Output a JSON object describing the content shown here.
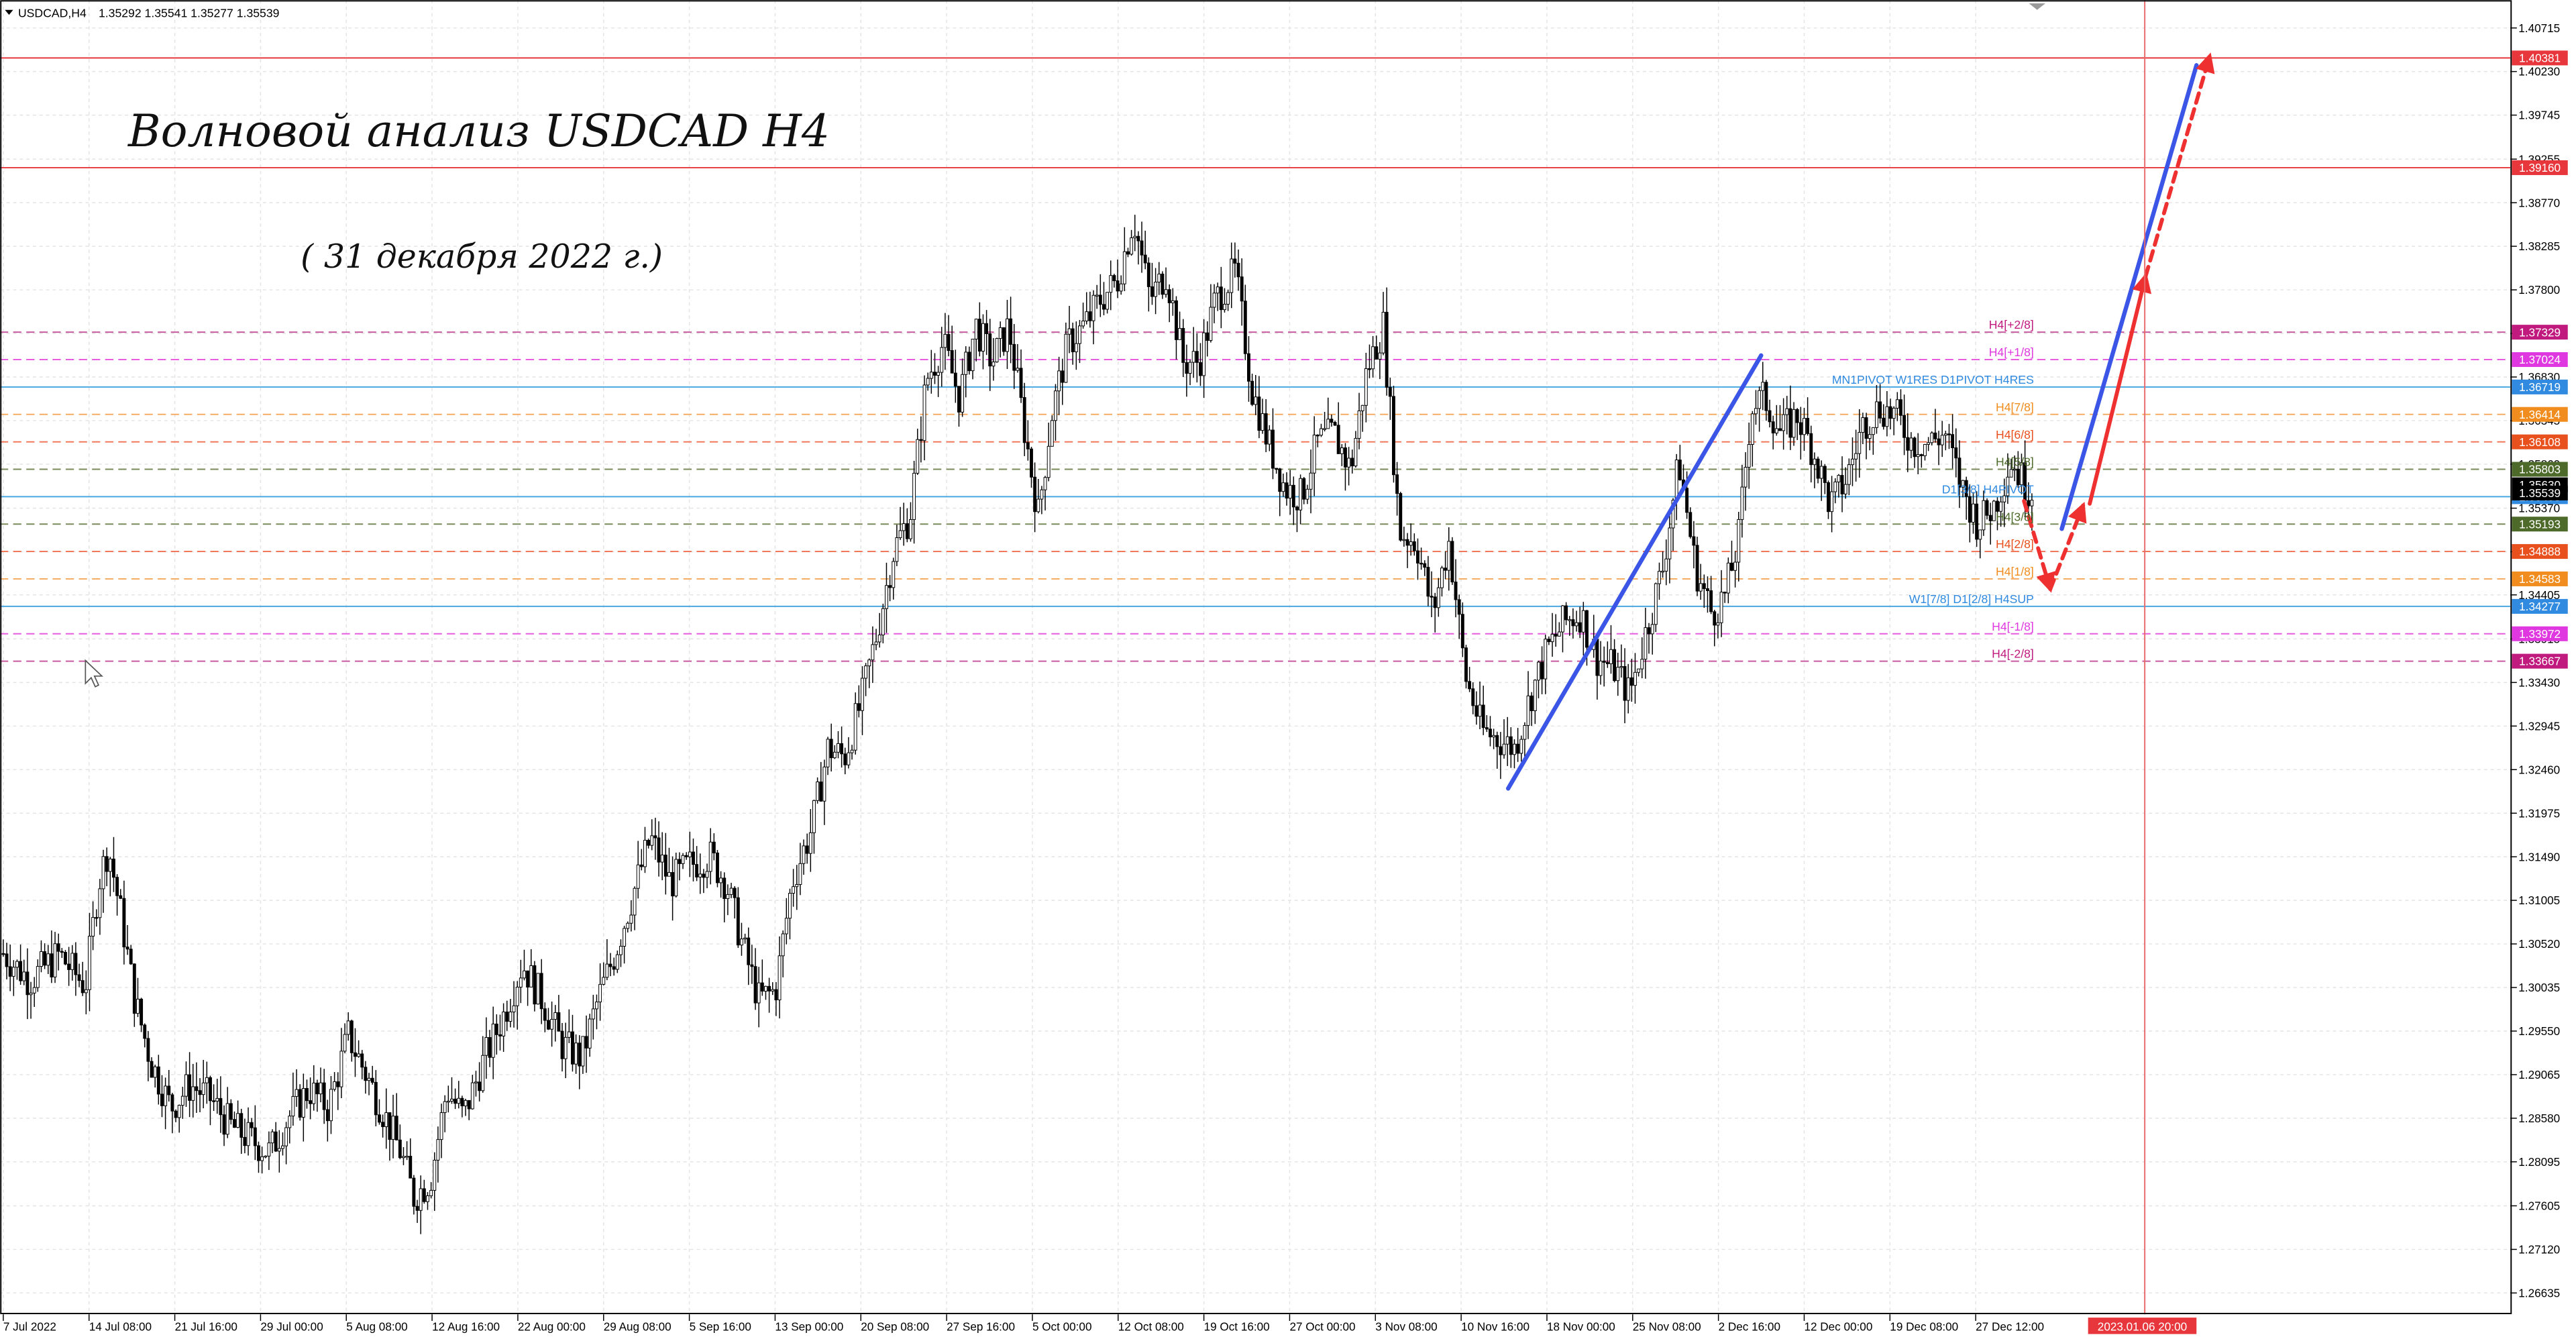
{
  "symbol_bar": {
    "symbol": "USDCAD,H4",
    "ohlc": "1.35292 1.35541 1.35277 1.35539"
  },
  "headline": {
    "title": "Волновой анализ USDCAD H4",
    "subtitle": "( 31 декабря 2022 г.)"
  },
  "colors": {
    "background": "#ffffff",
    "grid": "#e4e4e4",
    "candle": "#000000",
    "resistance_line": "#e8373c",
    "pivot_line": "#4aa8e0",
    "wave_blue": "#3b55e6",
    "wave_red": "#ee3030",
    "current_price_label": "#000000",
    "axis_text": "#000000"
  },
  "chart_data": {
    "type": "candlestick",
    "title": "",
    "xlabel": "",
    "ylabel": "",
    "ylim": [
      1.2634,
      1.4097
    ],
    "price_ticks": [
      "1.40715",
      "1.40230",
      "1.39745",
      "1.39255",
      "1.38770",
      "1.38285",
      "1.37800",
      "1.37315",
      "1.36830",
      "1.36345",
      "1.35860",
      "1.35370",
      "1.34885",
      "1.34405",
      "1.33915",
      "1.33430",
      "1.32945",
      "1.32460",
      "1.31975",
      "1.31490",
      "1.31005",
      "1.30520",
      "1.30035",
      "1.29550",
      "1.29065",
      "1.28580",
      "1.28095",
      "1.27605",
      "1.27120",
      "1.26635"
    ],
    "time_labels": [
      "7 Jul 2022",
      "14 Jul 08:00",
      "21 Jul 16:00",
      "29 Jul 00:00",
      "5 Aug 08:00",
      "12 Aug 16:00",
      "22 Aug 00:00",
      "29 Aug 08:00",
      "5 Sep 16:00",
      "13 Sep 00:00",
      "20 Sep 08:00",
      "27 Sep 16:00",
      "5 Oct 00:00",
      "12 Oct 08:00",
      "19 Oct 16:00",
      "27 Oct 00:00",
      "3 Nov 08:00",
      "10 Nov 16:00",
      "18 Nov 00:00",
      "25 Nov 08:00",
      "2 Dec 16:00",
      "12 Dec 00:00",
      "19 Dec 08:00",
      "27 Dec 12:00"
    ],
    "time_marker_label": "2023.01.06 20:00",
    "price_path": [
      [
        0,
        1.3045
      ],
      [
        18,
        1.3012
      ],
      [
        36,
        1.304
      ],
      [
        52,
        1.3005
      ],
      [
        60,
        1.312
      ],
      [
        66,
        1.316
      ],
      [
        74,
        1.308
      ],
      [
        82,
        1.299
      ],
      [
        92,
        1.292
      ],
      [
        104,
        1.287
      ],
      [
        116,
        1.2895
      ],
      [
        128,
        1.288
      ],
      [
        140,
        1.285
      ],
      [
        152,
        1.2835
      ],
      [
        164,
        1.282
      ],
      [
        176,
        1.286
      ],
      [
        188,
        1.289
      ],
      [
        200,
        1.287
      ],
      [
        212,
        1.295
      ],
      [
        222,
        1.291
      ],
      [
        232,
        1.287
      ],
      [
        244,
        1.282
      ],
      [
        252,
        1.277
      ],
      [
        262,
        1.279
      ],
      [
        272,
        1.289
      ],
      [
        282,
        1.286
      ],
      [
        294,
        1.292
      ],
      [
        306,
        1.297
      ],
      [
        318,
        1.303
      ],
      [
        330,
        1.299
      ],
      [
        342,
        1.294
      ],
      [
        354,
        1.2925
      ],
      [
        364,
        1.299
      ],
      [
        374,
        1.304
      ],
      [
        384,
        1.31
      ],
      [
        396,
        1.317
      ],
      [
        408,
        1.312
      ],
      [
        420,
        1.314
      ],
      [
        432,
        1.315
      ],
      [
        442,
        1.312
      ],
      [
        452,
        1.305
      ],
      [
        462,
        1.299
      ],
      [
        472,
        1.3
      ],
      [
        482,
        1.312
      ],
      [
        494,
        1.318
      ],
      [
        504,
        1.327
      ],
      [
        514,
        1.326
      ],
      [
        524,
        1.332
      ],
      [
        534,
        1.34
      ],
      [
        544,
        1.349
      ],
      [
        554,
        1.353
      ],
      [
        564,
        1.368
      ],
      [
        574,
        1.372
      ],
      [
        584,
        1.366
      ],
      [
        594,
        1.374
      ],
      [
        604,
        1.37
      ],
      [
        614,
        1.374
      ],
      [
        624,
        1.362
      ],
      [
        632,
        1.353
      ],
      [
        640,
        1.364
      ],
      [
        650,
        1.372
      ],
      [
        660,
        1.374
      ],
      [
        670,
        1.377
      ],
      [
        680,
        1.379
      ],
      [
        690,
        1.386
      ],
      [
        700,
        1.377
      ],
      [
        710,
        1.38
      ],
      [
        720,
        1.37
      ],
      [
        730,
        1.37
      ],
      [
        740,
        1.377
      ],
      [
        752,
        1.38
      ],
      [
        762,
        1.367
      ],
      [
        772,
        1.361
      ],
      [
        782,
        1.356
      ],
      [
        792,
        1.355
      ],
      [
        802,
        1.361
      ],
      [
        812,
        1.362
      ],
      [
        822,
        1.358
      ],
      [
        832,
        1.369
      ],
      [
        842,
        1.374
      ],
      [
        852,
        1.351
      ],
      [
        862,
        1.35
      ],
      [
        872,
        1.342
      ],
      [
        882,
        1.35
      ],
      [
        892,
        1.335
      ],
      [
        902,
        1.329
      ],
      [
        912,
        1.328
      ],
      [
        922,
        1.327
      ],
      [
        932,
        1.333
      ],
      [
        942,
        1.338
      ],
      [
        952,
        1.341
      ],
      [
        962,
        1.342
      ],
      [
        972,
        1.337
      ],
      [
        982,
        1.336
      ],
      [
        992,
        1.333
      ],
      [
        1002,
        1.34
      ],
      [
        1012,
        1.347
      ],
      [
        1022,
        1.359
      ],
      [
        1032,
        1.347
      ],
      [
        1042,
        1.342
      ],
      [
        1050,
        1.344
      ],
      [
        1058,
        1.35
      ],
      [
        1066,
        1.365
      ],
      [
        1074,
        1.366
      ],
      [
        1084,
        1.362
      ],
      [
        1094,
        1.364
      ],
      [
        1104,
        1.36
      ],
      [
        1114,
        1.354
      ],
      [
        1124,
        1.357
      ],
      [
        1134,
        1.363
      ],
      [
        1144,
        1.365
      ],
      [
        1154,
        1.364
      ],
      [
        1164,
        1.361
      ],
      [
        1174,
        1.361
      ],
      [
        1184,
        1.362
      ],
      [
        1194,
        1.356
      ],
      [
        1204,
        1.352
      ],
      [
        1214,
        1.354
      ],
      [
        1224,
        1.359
      ],
      [
        1234,
        1.356
      ],
      [
        1238,
        1.3554
      ]
    ],
    "horizontal_levels": [
      {
        "price": 1.40381,
        "label": "1.40381",
        "style": "solid",
        "color": "#e8373c",
        "label_bg": "#e8373c"
      },
      {
        "price": 1.3916,
        "label": "1.39160",
        "style": "solid",
        "color": "#e8373c",
        "label_bg": "#e8373c"
      },
      {
        "price": 1.37329,
        "label": "1.37329",
        "style": "dash",
        "color": "#c85aa0",
        "label_bg": "#c01a7e",
        "text": "H4[+2/8]",
        "text_color": "#c01a7e"
      },
      {
        "price": 1.37024,
        "label": "1.37024",
        "style": "dash",
        "color": "#e85ce0",
        "label_bg": "#e038e0",
        "text": "H4[+1/8]",
        "text_color": "#e038e0"
      },
      {
        "price": 1.36719,
        "label": "1.36719",
        "style": "solid",
        "color": "#4aa8e0",
        "label_bg": "#2f8ae0",
        "text": "MN1PIVOT W1RES D1PIVOT H4RES",
        "text_color": "#2f8ae0"
      },
      {
        "price": 1.36414,
        "label": "1.36414",
        "style": "dash",
        "color": "#f3a85a",
        "label_bg": "#f08d1e",
        "text": "H4[7/8]",
        "text_color": "#f08d1e"
      },
      {
        "price": 1.36108,
        "label": "1.36108",
        "style": "dash",
        "color": "#f07050",
        "label_bg": "#e8501e",
        "text": "H4[6/8]",
        "text_color": "#e8501e"
      },
      {
        "price": 1.35803,
        "label": "1.35803",
        "style": "dash",
        "color": "#7a8a5a",
        "label_bg": "#4d6a2a",
        "text": "H4[5/8]",
        "text_color": "#4d6a2a"
      },
      {
        "price": 1.35498,
        "label": "1.35498",
        "style": "solid",
        "color": "#4aa8e0",
        "label_bg": "#2f8ae0",
        "text": "D1[3/8] H4PIVOT",
        "text_color": "#2f8ae0"
      },
      {
        "price": 1.35193,
        "label": "1.35193",
        "style": "dash",
        "color": "#7a8a5a",
        "label_bg": "#4d6a2a",
        "text": "H4[3/8]",
        "text_color": "#4d6a2a"
      },
      {
        "price": 1.34888,
        "label": "1.34888",
        "style": "dash",
        "color": "#f07050",
        "label_bg": "#e8501e",
        "text": "H4[2/8]",
        "text_color": "#e8501e"
      },
      {
        "price": 1.34583,
        "label": "1.34583",
        "style": "dash",
        "color": "#f3a85a",
        "label_bg": "#f08d1e",
        "text": "H4[1/8]",
        "text_color": "#f08d1e"
      },
      {
        "price": 1.34277,
        "label": "1.34277",
        "style": "solid",
        "color": "#4aa8e0",
        "label_bg": "#2f8ae0",
        "text": "W1[7/8] D1[2/8] H4SUP",
        "text_color": "#2f8ae0"
      },
      {
        "price": 1.33972,
        "label": "1.33972",
        "style": "dash",
        "color": "#e85ce0",
        "label_bg": "#e038e0",
        "text": "H4[-1/8]",
        "text_color": "#e038e0"
      },
      {
        "price": 1.33667,
        "label": "1.33667",
        "style": "dash",
        "color": "#c85aa0",
        "label_bg": "#c01a7e",
        "text": "H4[-2/8]",
        "text_color": "#c01a7e"
      }
    ],
    "current_price": {
      "price": 1.35539,
      "label": "1.35539"
    },
    "bid_tag": {
      "price": 1.3563,
      "label": "1.35630"
    },
    "wave_lines": [
      {
        "color": "blue",
        "style": "solid",
        "from": [
          918,
          1.3225
        ],
        "to": [
          1072,
          1.3707
        ]
      },
      {
        "color": "blue",
        "style": "solid",
        "from": [
          1255,
          1.3514
        ],
        "to": [
          1337,
          1.403
        ]
      },
      {
        "color": "red",
        "style": "dashed",
        "from": [
          1232,
          1.3545
        ],
        "to": [
          1248,
          1.3447
        ]
      },
      {
        "color": "red",
        "style": "dashed",
        "from": [
          1248,
          1.3447
        ],
        "to": [
          1268,
          1.354
        ]
      },
      {
        "color": "red",
        "style": "solid",
        "from": [
          1272,
          1.3542
        ],
        "to": [
          1306,
          1.3795
        ]
      },
      {
        "color": "red",
        "style": "dashed",
        "from": [
          1306,
          1.3795
        ],
        "to": [
          1345,
          1.404
        ]
      }
    ]
  }
}
